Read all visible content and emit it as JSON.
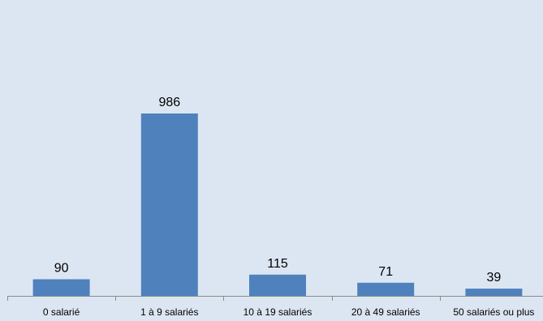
{
  "chart_data": {
    "type": "bar",
    "title": "",
    "xlabel": "",
    "ylabel": "",
    "categories": [
      "0 salarié",
      "1 à 9 salariés",
      "10 à 19 salariés",
      "20 à 49 salariés",
      "50 salariés ou plus"
    ],
    "values": [
      90,
      986,
      115,
      71,
      39
    ],
    "ylim": [
      0,
      1200
    ],
    "grid": false,
    "legend": "none",
    "bar_color": "#4f81bd",
    "axis_color": "#8c8c8c",
    "background_color": "#dce6f2"
  }
}
